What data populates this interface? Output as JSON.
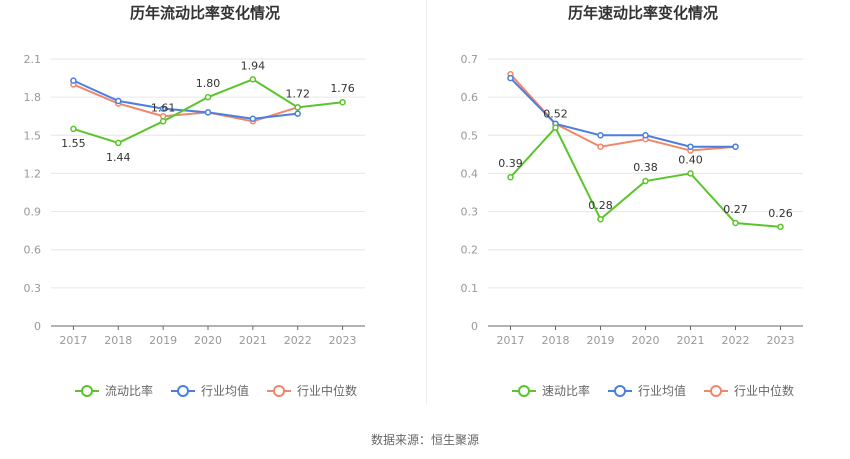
{
  "chart_data": [
    {
      "type": "line",
      "title": "历年流动比率变化情况",
      "categories": [
        "2017",
        "2018",
        "2019",
        "2020",
        "2021",
        "2022",
        "2023"
      ],
      "ylim": [
        0,
        2.1
      ],
      "yticks": [
        "0",
        "0.3",
        "0.6",
        "0.9",
        "1.2",
        "1.5",
        "1.8",
        "2.1"
      ],
      "grid": true,
      "legend_position": "bottom",
      "series": [
        {
          "name": "流动比率",
          "color": "#5ac52a",
          "values": [
            1.55,
            1.44,
            1.61,
            1.8,
            1.94,
            1.72,
            1.76
          ],
          "labels": [
            "1.55",
            "1.44",
            "1.61",
            "1.80",
            "1.94",
            "1.72",
            "1.76"
          ]
        },
        {
          "name": "行业均值",
          "color": "#4a7fe0",
          "values": [
            1.93,
            1.77,
            1.71,
            1.68,
            1.63,
            1.67,
            null
          ]
        },
        {
          "name": "行业中位数",
          "color": "#f0876a",
          "values": [
            1.9,
            1.75,
            1.65,
            1.68,
            1.61,
            1.72,
            null
          ]
        }
      ]
    },
    {
      "type": "line",
      "title": "历年速动比率变化情况",
      "categories": [
        "2017",
        "2018",
        "2019",
        "2020",
        "2021",
        "2022",
        "2023"
      ],
      "ylim": [
        0,
        0.7
      ],
      "yticks": [
        "0",
        "0.1",
        "0.2",
        "0.3",
        "0.4",
        "0.5",
        "0.6",
        "0.7"
      ],
      "grid": true,
      "legend_position": "bottom",
      "series": [
        {
          "name": "速动比率",
          "color": "#5ac52a",
          "values": [
            0.39,
            0.52,
            0.28,
            0.38,
            0.4,
            0.27,
            0.26
          ],
          "labels": [
            "0.39",
            "0.52",
            "0.28",
            "0.38",
            "0.40",
            "0.27",
            "0.26"
          ]
        },
        {
          "name": "行业均值",
          "color": "#4a7fe0",
          "values": [
            0.65,
            0.53,
            0.5,
            0.5,
            0.47,
            0.47,
            null
          ]
        },
        {
          "name": "行业中位数",
          "color": "#f0876a",
          "values": [
            0.66,
            0.53,
            0.47,
            0.49,
            0.46,
            0.47,
            null
          ]
        }
      ]
    }
  ],
  "footer": {
    "source": "数据来源：恒生聚源"
  }
}
